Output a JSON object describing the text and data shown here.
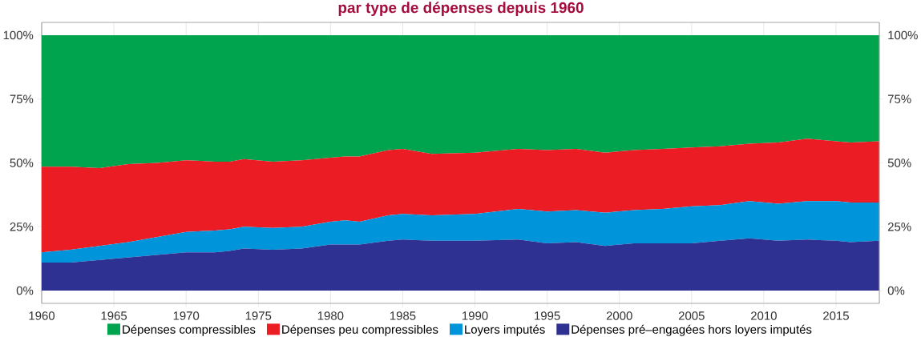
{
  "chart_data": {
    "type": "area",
    "stacked": true,
    "title": "par type de dépenses depuis 1960",
    "x": [
      1960,
      1962,
      1964,
      1966,
      1968,
      1970,
      1972,
      1973,
      1974,
      1976,
      1978,
      1980,
      1981,
      1982,
      1984,
      1985,
      1987,
      1990,
      1993,
      1995,
      1997,
      1999,
      2001,
      2003,
      2005,
      2007,
      2009,
      2011,
      2013,
      2015,
      2016,
      2018
    ],
    "series": [
      {
        "name": "Dépenses pré–engagées hors loyers imputés",
        "color": "#2e3192",
        "values": [
          11,
          11,
          12,
          13,
          14,
          15,
          15,
          15.5,
          16.5,
          16,
          16.5,
          18,
          18,
          18,
          19.5,
          20,
          19.5,
          19.5,
          20,
          18.5,
          19,
          17.5,
          18.5,
          18.5,
          18.5,
          19.5,
          20.5,
          19.5,
          20,
          19.5,
          19,
          19.5
        ]
      },
      {
        "name": "Loyers imputés",
        "color": "#0095da",
        "values": [
          4,
          5,
          5.5,
          6,
          7,
          8,
          8.5,
          8.5,
          8.5,
          8.5,
          8.5,
          9,
          9.5,
          9,
          10,
          10,
          10,
          10.5,
          12,
          12.5,
          12.5,
          13,
          13,
          13.5,
          14.5,
          14,
          14.5,
          14.5,
          15,
          15.5,
          15.5,
          15
        ]
      },
      {
        "name": "Dépenses peu compressibles",
        "color": "#ec1c24",
        "values": [
          33.5,
          32.5,
          30.5,
          30.5,
          29,
          28,
          27,
          26.5,
          26.5,
          26,
          26,
          25,
          25,
          25.5,
          25.5,
          25.5,
          24,
          24,
          23.5,
          24,
          24,
          23.5,
          23.5,
          23.5,
          23,
          23,
          22.5,
          24,
          24.5,
          23.5,
          23.5,
          24
        ]
      },
      {
        "name": "Dépenses compressibles",
        "color": "#00a44f",
        "values": [
          51.5,
          51.5,
          52,
          50.5,
          50,
          49,
          49.5,
          49.5,
          48.5,
          49.5,
          49,
          48,
          47.5,
          47.5,
          45,
          44.5,
          46.5,
          46,
          44.5,
          45,
          44.5,
          46,
          45,
          44.5,
          44,
          43.5,
          42.5,
          42,
          40.5,
          41.5,
          42,
          41.5
        ]
      }
    ],
    "xlim": [
      1960,
      2018
    ],
    "xticks": [
      1960,
      1965,
      1970,
      1975,
      1980,
      1985,
      1990,
      1995,
      2000,
      2005,
      2010,
      2015
    ],
    "ylim": [
      -5,
      105
    ],
    "yticks": [
      {
        "value": 0,
        "label": "0%"
      },
      {
        "value": 25,
        "label": "25%"
      },
      {
        "value": 50,
        "label": "50%"
      },
      {
        "value": 75,
        "label": "75%"
      },
      {
        "value": 100,
        "label": "100%"
      }
    ],
    "y2lim": [
      -5,
      105
    ],
    "y2ticks": [
      {
        "value": 0,
        "label": "0%"
      },
      {
        "value": 25,
        "label": "25%"
      },
      {
        "value": 50,
        "label": "50%"
      },
      {
        "value": 75,
        "label": "75%"
      },
      {
        "value": 100,
        "label": "100%"
      }
    ],
    "grid": "x",
    "legend": "bottom"
  }
}
